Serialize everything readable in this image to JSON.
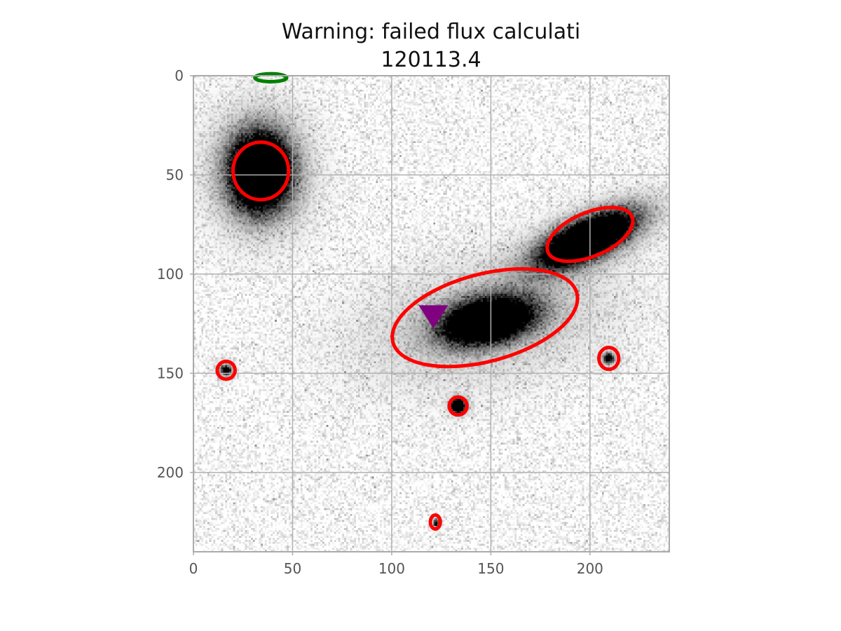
{
  "figure": {
    "title_lines": [
      "Warning: failed flux calculati",
      "120113.4"
    ]
  },
  "image": {
    "x_range": [
      0,
      240
    ],
    "y_range": [
      0,
      240
    ],
    "y_inverted": true,
    "colormap": "gray_r",
    "grid": true
  },
  "axes": {
    "x_ticks": [
      0,
      50,
      100,
      150,
      200
    ],
    "y_ticks": [
      0,
      50,
      100,
      150,
      200
    ]
  },
  "sources": [
    {
      "name": "source-1",
      "x": 33,
      "y": 48,
      "rx": 18,
      "ry": 23,
      "angle": 0,
      "peak": 1.0,
      "core": 0.55
    },
    {
      "name": "source-2",
      "x": 198,
      "y": 82,
      "rx": 27,
      "ry": 10,
      "angle": -25,
      "peak": 1.0,
      "core": 0.6
    },
    {
      "name": "source-3",
      "x": 148,
      "y": 123,
      "rx": 42,
      "ry": 20,
      "angle": -12,
      "peak": 1.0,
      "core": 0.35
    },
    {
      "name": "source-4",
      "x": 16,
      "y": 148,
      "rx": 4,
      "ry": 4,
      "angle": 0,
      "peak": 0.6,
      "core": 0.4
    },
    {
      "name": "source-5",
      "x": 133,
      "y": 166,
      "rx": 3.5,
      "ry": 3.5,
      "angle": 0,
      "peak": 1.0,
      "core": 0.6
    },
    {
      "name": "source-6",
      "x": 209,
      "y": 142,
      "rx": 4,
      "ry": 4,
      "angle": 0,
      "peak": 0.6,
      "core": 0.4
    },
    {
      "name": "source-7",
      "x": 122,
      "y": 225,
      "rx": 2,
      "ry": 3,
      "angle": 0,
      "peak": 0.5,
      "core": 0.4
    }
  ],
  "apertures": [
    {
      "name": "aperture-1",
      "cx": 34,
      "cy": 48,
      "rx": 14,
      "ry": 14.5,
      "angle": 0,
      "color": "#ff0000"
    },
    {
      "name": "aperture-2",
      "cx": 200,
      "cy": 80,
      "rx": 23,
      "ry": 11,
      "angle": -23,
      "color": "#ff0000"
    },
    {
      "name": "aperture-3",
      "cx": 147,
      "cy": 122,
      "rx": 48,
      "ry": 22,
      "angle": -15,
      "color": "#ff0000"
    },
    {
      "name": "aperture-4",
      "cx": 16.5,
      "cy": 148.5,
      "rx": 4.5,
      "ry": 4.5,
      "angle": 0,
      "color": "#ff0000"
    },
    {
      "name": "aperture-5",
      "cx": 133.5,
      "cy": 166.5,
      "rx": 4.5,
      "ry": 4.5,
      "angle": 0,
      "color": "#ff0000"
    },
    {
      "name": "aperture-6",
      "cx": 209.5,
      "cy": 142.5,
      "rx": 5,
      "ry": 5.5,
      "angle": 0,
      "color": "#ff0000"
    },
    {
      "name": "aperture-7",
      "cx": 122,
      "cy": 225,
      "rx": 2.5,
      "ry": 3.5,
      "angle": 0,
      "color": "#ff0000"
    },
    {
      "name": "aperture-8",
      "cx": 39,
      "cy": 1,
      "rx": 8,
      "ry": 2,
      "angle": 0,
      "color": "#008000"
    }
  ],
  "marker": {
    "name": "target-marker",
    "x": 121,
    "y": 121,
    "shape": "triangle-down",
    "color": "#800080"
  }
}
